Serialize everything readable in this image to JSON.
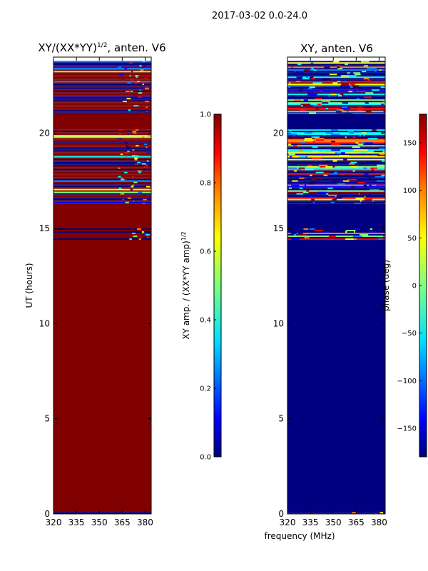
{
  "suptitle": "2017-03-02 0.0-24.0",
  "colors": {
    "dark_red": "#800000",
    "dark_blue": "#000080",
    "jet": [
      "#00007f",
      "#0000ff",
      "#007fff",
      "#00ffff",
      "#7fff7f",
      "#ffff00",
      "#ff7f00",
      "#ff0000",
      "#7f0000"
    ]
  },
  "chart_data": [
    {
      "type": "heatmap",
      "title": "XY/(XX*YY)",
      "title_sup": "1/2",
      "title_suffix": ", anten. V6",
      "xlabel": "",
      "ylabel": "UT (hours)",
      "xlim": [
        320,
        384
      ],
      "ylim": [
        0,
        24
      ],
      "xticks": [
        320,
        335,
        350,
        365,
        380
      ],
      "yticks": [
        0,
        5,
        10,
        15,
        20
      ],
      "colorbar": {
        "label": "XY amp. / (XX*YY amp)",
        "label_sup": "1/2",
        "range": [
          0.0,
          1.0
        ],
        "ticks": [
          "0.0",
          "0.2",
          "0.4",
          "0.6",
          "0.8",
          "1.0"
        ],
        "colormap": "jet"
      },
      "regions_value_by_ut": [
        {
          "ut": [
            0.0,
            0.1
          ],
          "value": 0.0
        },
        {
          "ut": [
            0.1,
            14.4
          ],
          "value": 1.0
        },
        {
          "ut": [
            14.4,
            15.0
          ],
          "value": "mixed"
        },
        {
          "ut": [
            15.0,
            16.3
          ],
          "value": 1.0
        },
        {
          "ut": [
            16.3,
            18.8
          ],
          "value": "mixed"
        },
        {
          "ut": [
            18.8,
            20.2
          ],
          "value": "mixed"
        },
        {
          "ut": [
            20.2,
            21.0
          ],
          "value": 1.0
        },
        {
          "ut": [
            21.0,
            23.8
          ],
          "value": "mixed"
        }
      ]
    },
    {
      "type": "heatmap",
      "title": "XY, anten. V6",
      "xlabel": "frequency (MHz)",
      "ylabel": "",
      "xlim": [
        320,
        384
      ],
      "ylim": [
        0,
        24
      ],
      "xticks": [
        320,
        335,
        350,
        365,
        380
      ],
      "yticks": [
        0,
        5,
        10,
        15,
        20
      ],
      "colorbar": {
        "label": "phase (deg)",
        "range": [
          -180,
          180
        ],
        "ticks": [
          -150,
          -100,
          -50,
          0,
          50,
          100,
          150
        ],
        "colormap": "jet"
      },
      "regions_value_by_ut": [
        {
          "ut": [
            0.0,
            0.1
          ],
          "value": "mixed"
        },
        {
          "ut": [
            0.1,
            14.4
          ],
          "value": -180
        },
        {
          "ut": [
            14.4,
            15.0
          ],
          "value": "mixed"
        },
        {
          "ut": [
            15.0,
            16.3
          ],
          "value": -180
        },
        {
          "ut": [
            16.3,
            18.8
          ],
          "value": "mixed"
        },
        {
          "ut": [
            18.8,
            20.2
          ],
          "value": "mixed"
        },
        {
          "ut": [
            20.2,
            21.0
          ],
          "value": -180
        },
        {
          "ut": [
            21.0,
            23.8
          ],
          "value": "mixed"
        }
      ]
    }
  ]
}
